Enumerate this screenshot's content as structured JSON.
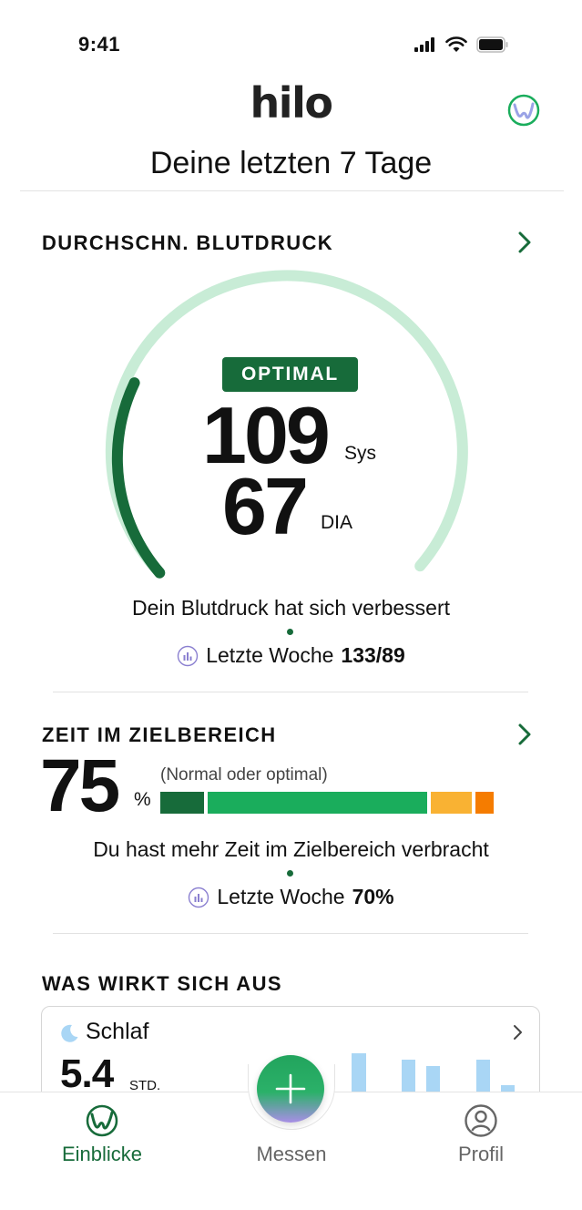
{
  "status_bar": {
    "time": "9:41",
    "icons": [
      "signal-icon",
      "wifi-icon",
      "battery-icon"
    ]
  },
  "header": {
    "logo": "hilo",
    "title": "Deine letzten 7 Tage"
  },
  "blood_pressure": {
    "title": "DURCHSCHN. BLUTDRUCK",
    "status": "OPTIMAL",
    "systolic": "109",
    "systolic_unit": "Sys",
    "diastolic": "67",
    "diastolic_unit": "DIA",
    "message": "Dein Blutdruck hat sich verbessert",
    "last_week_label": "Letzte Woche",
    "last_week_value": "133/89"
  },
  "time_in_range": {
    "title": "ZEIT IM ZIELBEREICH",
    "value": "75",
    "unit": "%",
    "note": "(Normal oder optimal)",
    "message": "Du hast mehr Zeit im Zielbereich verbracht",
    "last_week_label": "Letzte Woche",
    "last_week_value": "70%",
    "segment_colors": [
      "#176b3a",
      "#1aad5c",
      "#f9b233",
      "#f57c00"
    ]
  },
  "factors": {
    "title": "WAS WIRKT SICH AUS",
    "card": {
      "title": "Schlaf",
      "value": "5.4",
      "unit": "STD."
    }
  },
  "nav": {
    "items": [
      {
        "label": "Einblicke",
        "icon": "insights-icon",
        "active": true
      },
      {
        "label": "Messen",
        "icon": "plus-icon",
        "active": false
      },
      {
        "label": "Profil",
        "icon": "profile-icon",
        "active": false
      }
    ]
  },
  "colors": {
    "accent": "#176b3a",
    "accent_light": "#c8ecd6",
    "fab_green": "#22a45d",
    "fab_purple": "#a88ee6",
    "chart_blue": "#a9d6f5"
  }
}
